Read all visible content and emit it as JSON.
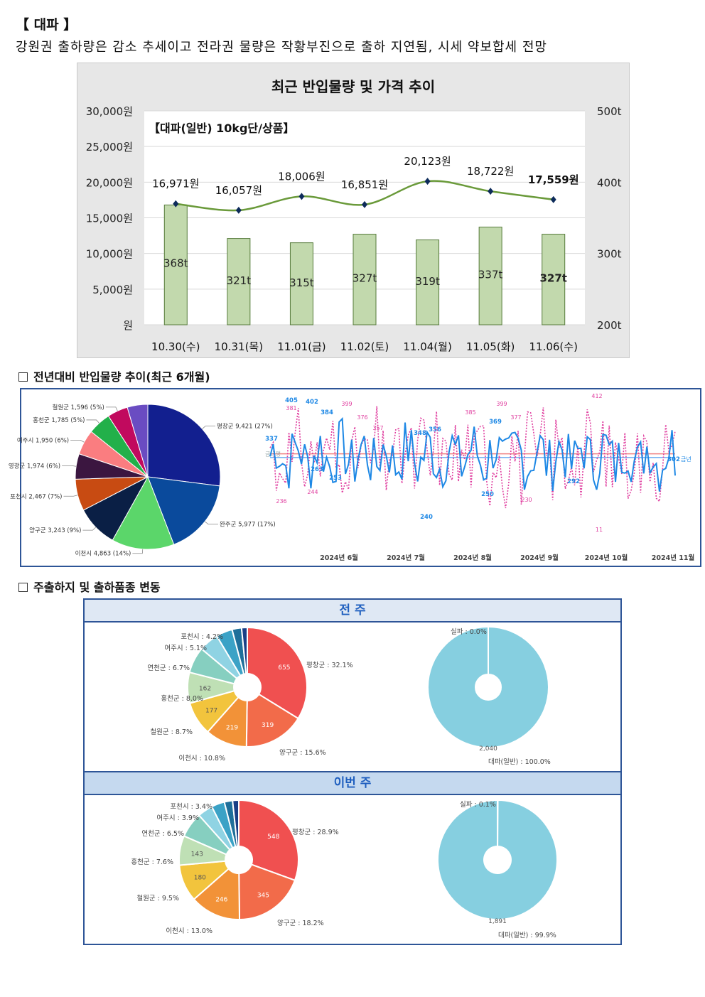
{
  "header": {
    "title": "【 대파 】",
    "subtitle": "강원권 출하량은 감소 추세이고 전라권 물량은 작황부진으로 출하 지연됨, 시세 약보합세 전망"
  },
  "combo_chart": {
    "title": "최근 반입물량 및 가격 추이",
    "inner_label": "【대파(일반) 10kg단/상품】",
    "left_ticks": [
      "30,000원",
      "25,000원",
      "20,000원",
      "15,000원",
      "10,000원",
      "5,000원",
      "원"
    ],
    "right_ticks": [
      "500t",
      "400t",
      "300t",
      "200t"
    ],
    "categories": [
      "10.30(수)",
      "10.31(목)",
      "11.01(금)",
      "11.02(토)",
      "11.04(월)",
      "11.05(화)",
      "11.06(수)"
    ],
    "price_labels": [
      "16,971원",
      "16,057원",
      "18,006원",
      "16,851원",
      "20,123원",
      "18,722원",
      "17,559원"
    ],
    "volume_labels": [
      "368t",
      "321t",
      "315t",
      "327t",
      "319t",
      "337t",
      "327t"
    ],
    "colors": {
      "bar": "#c2d9ad",
      "bar_edge": "#557a3a",
      "line": "#6a9a3a",
      "marker": "#0d2b5a"
    }
  },
  "section1": {
    "title": "전년대비 반입물량 추이(최근 6개월)"
  },
  "section2": {
    "title": "주출하지 및 출하품종 변동"
  },
  "trend": {
    "months": [
      "2024년 6월",
      "2024년 7월",
      "2024년 8월",
      "2024년 9월",
      "2024년 10월",
      "2024년 11월"
    ],
    "current_label": "금년",
    "prev_label": "금년평",
    "blue_labels": [
      "337",
      "405",
      "402",
      "384",
      "263",
      "253",
      "348",
      "356",
      "369",
      "240",
      "250",
      "292",
      "302"
    ],
    "pink_labels": [
      "381",
      "399",
      "376",
      "357",
      "385",
      "399",
      "377",
      "412",
      "244",
      "236",
      "230",
      "11"
    ],
    "colors": {
      "current": "#1e88e5",
      "previous": "#e040a0"
    }
  },
  "chart_data": [
    {
      "type": "bar",
      "title": "최근 반입물량 및 가격 추이",
      "categories": [
        "10.30(수)",
        "10.31(목)",
        "11.01(금)",
        "11.02(토)",
        "11.04(월)",
        "11.05(화)",
        "11.06(수)"
      ],
      "series": [
        {
          "name": "",
          "type": "bar",
          "unit": "t",
          "values": [
            368,
            321,
            315,
            327,
            319,
            337,
            327
          ]
        },
        {
          "name": "",
          "type": "line",
          "unit": "원",
          "values": [
            16971,
            16057,
            18006,
            16851,
            20123,
            18722,
            17559
          ]
        }
      ],
      "ylim": [
        0,
        30000
      ],
      "y2lim": [
        200,
        500
      ]
    },
    {
      "type": "pie",
      "slices": [
        {
          "label": "평창군 9,421 (27%)",
          "value": 9421,
          "color": "#121f8f"
        },
        {
          "label": "완주군 5,977 (17%)",
          "value": 5977,
          "color": "#0a4a9c"
        },
        {
          "label": "이천시 4,863 (14%)",
          "value": 4863,
          "color": "#5bd66a"
        },
        {
          "label": "양구군 3,243 (9%)",
          "value": 3243,
          "color": "#0a1f45"
        },
        {
          "label": "포천시 2,467 (7%)",
          "value": 2467,
          "color": "#c84b12"
        },
        {
          "label": "영광군 1,974 (6%)",
          "value": 1974,
          "color": "#3b1640"
        },
        {
          "label": "여주시 1,950 (6%)",
          "value": 1950,
          "color": "#fa7d80"
        },
        {
          "label": "홍천군 1,785 (5%)",
          "value": 1785,
          "color": "#22b04a"
        },
        {
          "label": "철원군 1,596 (5%)",
          "value": 1596,
          "color": "#c10a5e"
        },
        {
          "label": "",
          "value": 1596,
          "color": "#6a4cc2"
        }
      ]
    },
    {
      "type": "pie",
      "title": "전 주",
      "slices": [
        {
          "label": "평창군 : 32.1%",
          "value": 655,
          "shown": "655",
          "color": "#f05050"
        },
        {
          "label": "양구군 : 15.6%",
          "value": 319,
          "shown": "319",
          "color": "#f26b4a"
        },
        {
          "label": "이천시 : 10.8%",
          "value": 219,
          "shown": "219",
          "color": "#f29238"
        },
        {
          "label": "철원군 : 8.7%",
          "value": 177,
          "shown": "177",
          "color": "#f2c43d"
        },
        {
          "label": "홍천군 : 8.0%",
          "value": 162,
          "shown": "162",
          "color": "#bfe0b5"
        },
        {
          "label": "연천군 : 6.7%",
          "value": 137,
          "shown": "",
          "color": "#86cfc0"
        },
        {
          "label": "여주시 : 5.1%",
          "value": 104,
          "shown": "",
          "color": "#8fd3e3"
        },
        {
          "label": "포천시 : 4.2%",
          "value": 86,
          "shown": "",
          "color": "#3ba2c6"
        },
        {
          "label": "",
          "value": 50,
          "shown": "",
          "color": "#1f6f9a"
        },
        {
          "label": "",
          "value": 30,
          "shown": "",
          "color": "#1a3f86"
        }
      ]
    },
    {
      "type": "pie",
      "title": "전 주",
      "slices": [
        {
          "label": "실파 : 0.0%",
          "value": 0,
          "shown": "",
          "color": "#86cfe0"
        },
        {
          "label": "대파(일반) : 100.0%",
          "value": 2040,
          "shown": "2,040",
          "color": "#86cfe0"
        }
      ]
    },
    {
      "type": "pie",
      "title": "이번 주",
      "slices": [
        {
          "label": "평창군 : 28.9%",
          "value": 548,
          "shown": "548",
          "color": "#f05050"
        },
        {
          "label": "양구군 : 18.2%",
          "value": 345,
          "shown": "345",
          "color": "#f26b4a"
        },
        {
          "label": "이천시 : 13.0%",
          "value": 246,
          "shown": "246",
          "color": "#f29238"
        },
        {
          "label": "철원군 : 9.5%",
          "value": 180,
          "shown": "180",
          "color": "#f2c43d"
        },
        {
          "label": "홍천군 : 7.6%",
          "value": 143,
          "shown": "143",
          "color": "#bfe0b5"
        },
        {
          "label": "연천군 : 6.5%",
          "value": 123,
          "shown": "",
          "color": "#86cfc0"
        },
        {
          "label": "여주시 : 3.9%",
          "value": 74,
          "shown": "",
          "color": "#8fd3e3"
        },
        {
          "label": "포천시 : 3.4%",
          "value": 64,
          "shown": "",
          "color": "#3ba2c6"
        },
        {
          "label": "",
          "value": 40,
          "shown": "",
          "color": "#1f6f9a"
        },
        {
          "label": "",
          "value": 30,
          "shown": "",
          "color": "#1a3f86"
        }
      ]
    },
    {
      "type": "pie",
      "title": "이번 주",
      "slices": [
        {
          "label": "실파 : 0.1%",
          "value": 2,
          "shown": "",
          "color": "#86cfe0"
        },
        {
          "label": "대파(일반) : 99.9%",
          "value": 1891,
          "shown": "1,891",
          "color": "#86cfe0"
        }
      ]
    }
  ],
  "weekly": {
    "prev_title": "전 주",
    "this_title": "이번 주"
  }
}
